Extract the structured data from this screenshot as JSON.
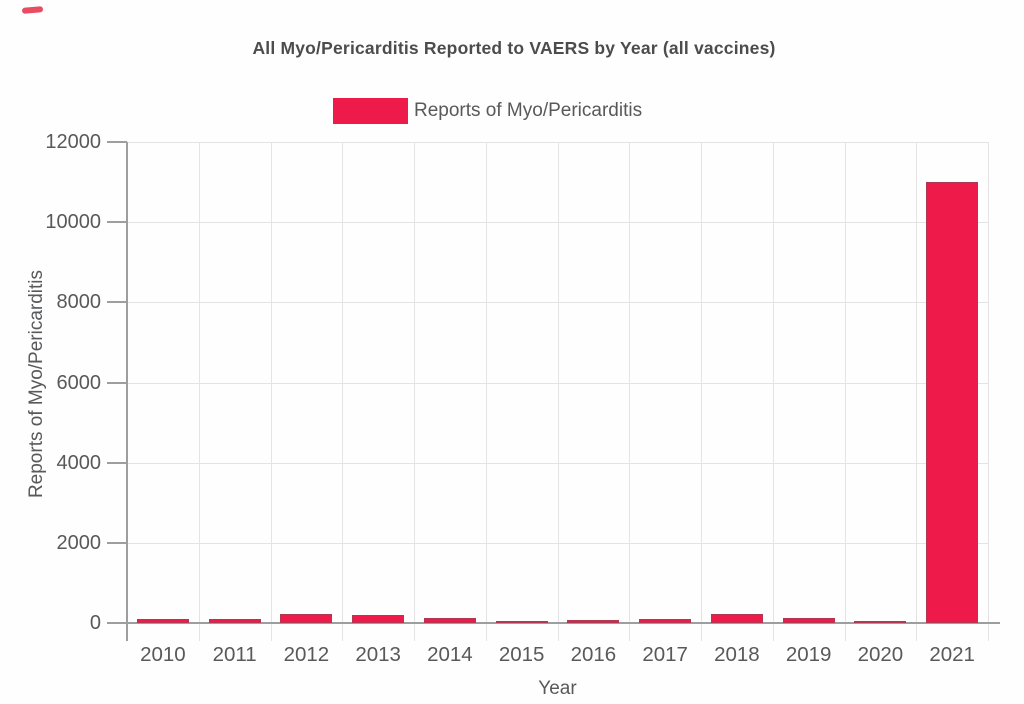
{
  "chart_data": {
    "type": "bar",
    "title": "All Myo/Pericarditis Reported to VAERS by Year (all vaccines)",
    "legend_entries": [
      "Reports of Myo/Pericarditis"
    ],
    "legend_position": "top",
    "xlabel": "Year",
    "ylabel": "Reports of Myo/Pericarditis",
    "categories": [
      "2010",
      "2011",
      "2012",
      "2013",
      "2014",
      "2015",
      "2016",
      "2017",
      "2018",
      "2019",
      "2020",
      "2021"
    ],
    "values": [
      100,
      110,
      220,
      210,
      120,
      45,
      85,
      105,
      215,
      115,
      55,
      11000
    ],
    "yticks": [
      0,
      2000,
      4000,
      6000,
      8000,
      10000,
      12000
    ],
    "ylim": [
      0,
      12000
    ],
    "grid": true
  },
  "colors": {
    "bar_fill": "#ee1b4a",
    "bar_border": "#b23752",
    "gridline": "#e4e4e4",
    "axis": "#9d9ea0",
    "tick_text": "#58595b",
    "title_text": "#4b4c4e",
    "pen_mark": "#e8415a"
  },
  "decorations": {
    "pen_mark_top_left": true
  }
}
